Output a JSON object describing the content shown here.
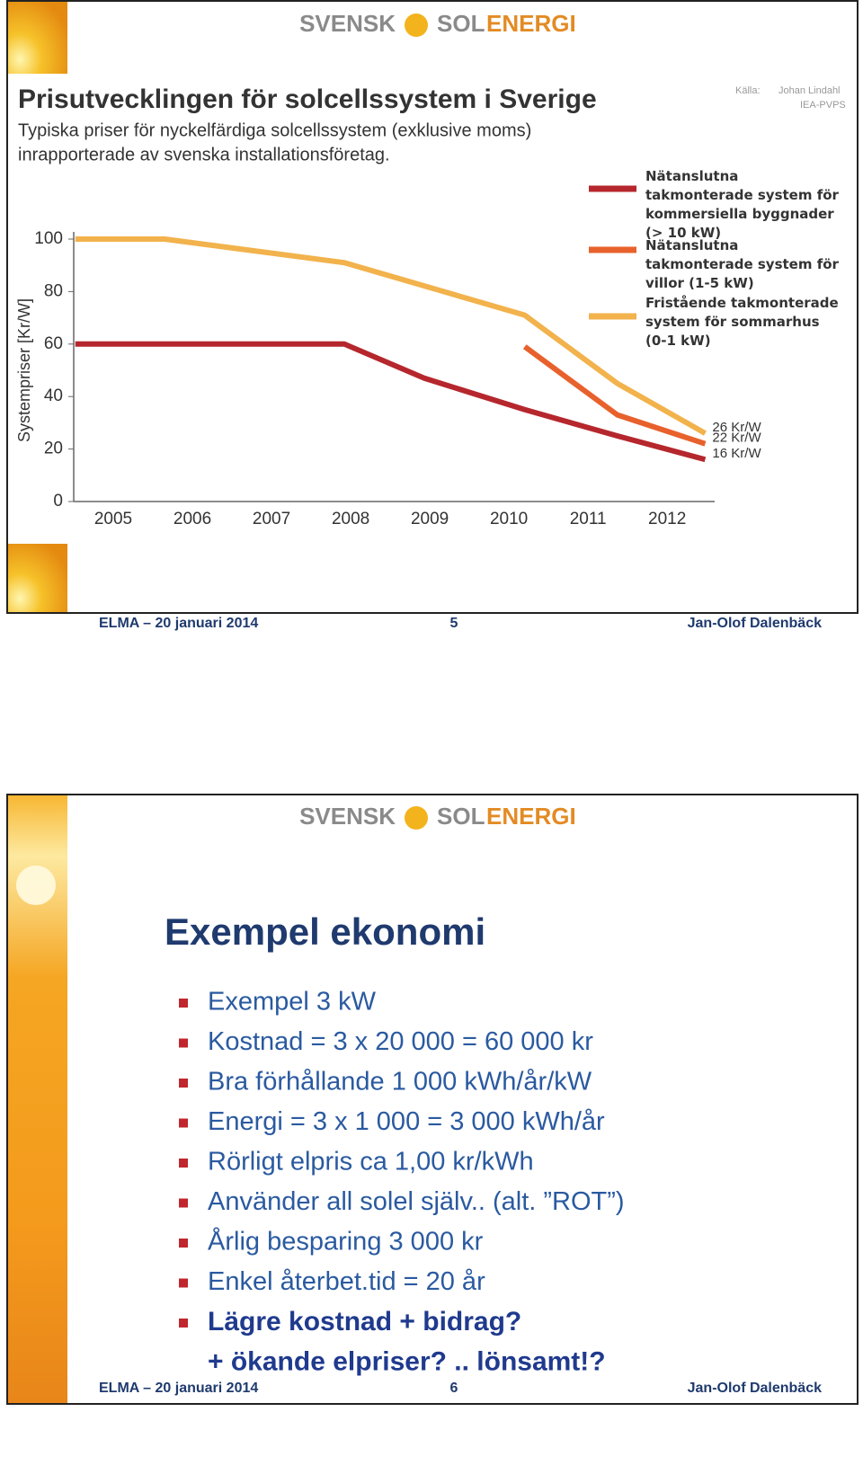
{
  "chart_data": {
    "type": "line",
    "title": "Prisutvecklingen för solcellssystem i Sverige",
    "subtitle": [
      "Typiska priser för nyckelfärdiga solcellssystem (exklusive moms)",
      "inrapporterade av svenska installationsföretag."
    ],
    "source": [
      "Källa:",
      "Johan Lindahl",
      "IEA-PVPS"
    ],
    "ylabel": "Systempriser [Kr/W]",
    "xlim": [
      2004.5,
      2012.6
    ],
    "xticks": [
      2005,
      2006,
      2007,
      2008,
      2009,
      2010,
      2011,
      2012
    ],
    "ylim": [
      0,
      100
    ],
    "yticks": [
      0,
      20,
      40,
      60,
      80,
      100
    ],
    "series": [
      {
        "name": "Nätanslutna takmonterade system för kommersiella byggnader (> 10 kW)",
        "color": "#b5272d",
        "x": [
          2004.52,
          2007.92,
          2008.93,
          2010.2,
          2011.37,
          2012.48
        ],
        "values": [
          60,
          60,
          47,
          35,
          25,
          16
        ],
        "value_labels": [
          null,
          null,
          null,
          null,
          null,
          "16 Kr/W"
        ]
      },
      {
        "name": "Nätanslutna takmonterade system för villor (1-5 kW)",
        "color": "#e8612c",
        "x": [
          2010.2,
          2011.37,
          2012.48
        ],
        "values": [
          59,
          33,
          22
        ],
        "value_labels": [
          null,
          null,
          "22 Kr/W"
        ]
      },
      {
        "name": "Fristående takmonterade system för sommarhus (0-1 kW)",
        "color": "#f2b24c",
        "x": [
          2004.52,
          2005.65,
          2007.92,
          2010.2,
          2011.37,
          2012.48
        ],
        "values": [
          100,
          100,
          91,
          71,
          45,
          26
        ],
        "value_labels": [
          null,
          null,
          null,
          null,
          null,
          "26 Kr/W"
        ]
      }
    ]
  },
  "slides": [
    {
      "logo": [
        "SVENSK",
        "SOL",
        "ENERGI"
      ],
      "footer": {
        "left": "ELMA – 20 januari 2014",
        "page": "5",
        "right": "Jan-Olof Dalenbäck"
      }
    },
    {
      "logo": [
        "SVENSK",
        "SOL",
        "ENERGI"
      ],
      "title": "Exempel ekonomi",
      "bullets": [
        "Exempel 3 kW",
        "Kostnad = 3 x 20 000 = 60 000 kr",
        "Bra förhållande 1 000 kWh/år/kW",
        "Energi = 3 x 1 000 = 3 000 kWh/år",
        "Rörligt elpris ca 1,00 kr/kWh",
        "Använder all solel själv.. (alt. ”ROT”)",
        "Årlig besparing 3 000 kr",
        "Enkel återbet.tid = 20 år"
      ],
      "emphasis": [
        "Lägre kostnad + bidrag?",
        "+ ökande elpriser? .. lönsamt!?"
      ],
      "footer": {
        "left": "ELMA – 20 januari 2014",
        "page": "6",
        "right": "Jan-Olof Dalenbäck"
      }
    }
  ]
}
